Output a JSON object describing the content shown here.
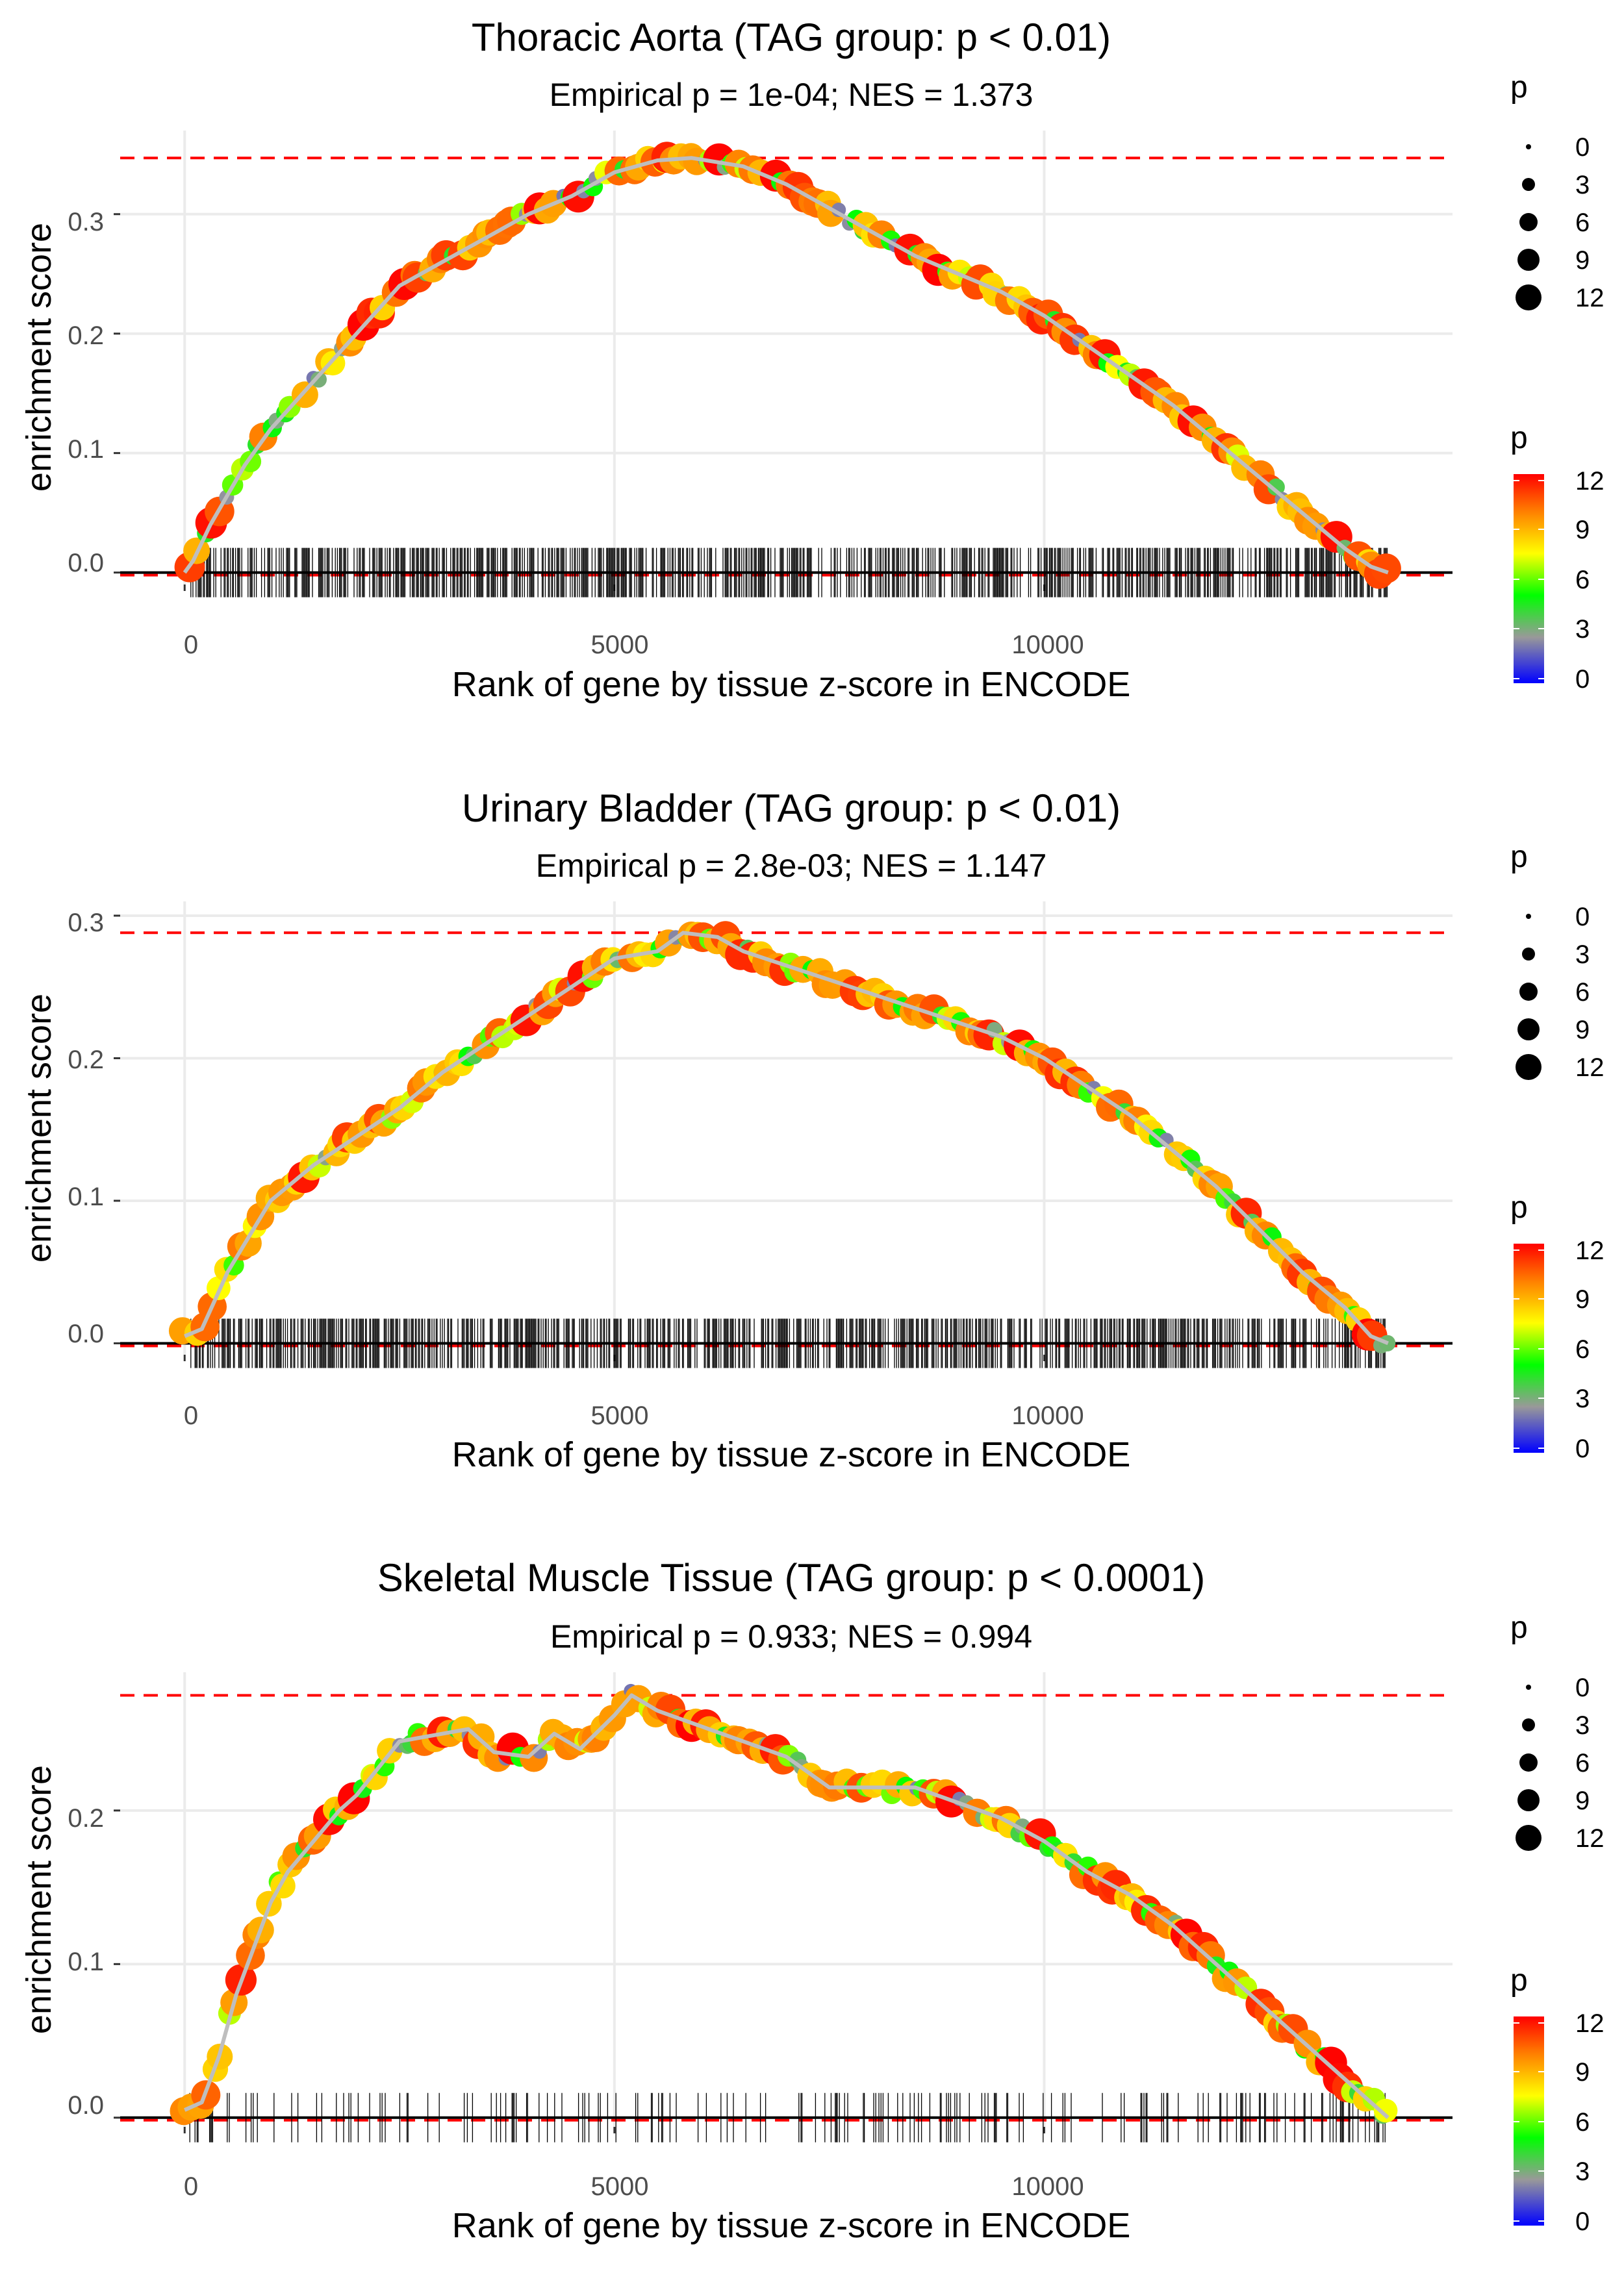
{
  "colors": {
    "gradient": [
      "#0000ff",
      "#999999",
      "#00ff00",
      "#ffff00",
      "#ff8000",
      "#ff0000"
    ],
    "ref_line": "#ff0000",
    "grid": "#ebebeb",
    "curve": "#bebebe",
    "rug": "#000000"
  },
  "chart_data": [
    {
      "type": "scatter",
      "title": "Thoracic Aorta (TAG group: p < 0.01)",
      "subtitle": "Empirical p = 1e-04; NES = 1.373",
      "xlabel": "Rank of gene by tissue z-score in ENCODE",
      "ylabel": "enrichment score",
      "xlim": [
        -750,
        14750
      ],
      "ylim": [
        -0.01,
        0.37
      ],
      "xticks": [
        0,
        5000,
        10000
      ],
      "yticks": [
        0.0,
        0.1,
        0.2,
        0.3
      ],
      "ytick_labels": [
        "0.0",
        "0.1",
        "0.2",
        "0.3"
      ],
      "max_es": 0.347,
      "rug_density": 1.0,
      "curve": {
        "x": [
          0,
          100,
          300,
          700,
          1000,
          1500,
          2000,
          2500,
          3000,
          3500,
          4000,
          4500,
          5000,
          5500,
          5900,
          6500,
          7000,
          7500,
          8000,
          8500,
          9000,
          9500,
          10000,
          10500,
          11000,
          11500,
          12000,
          12500,
          13000,
          13500,
          13800,
          14000
        ],
        "y": [
          0.0,
          0.01,
          0.04,
          0.09,
          0.12,
          0.16,
          0.2,
          0.24,
          0.26,
          0.28,
          0.3,
          0.315,
          0.335,
          0.345,
          0.347,
          0.34,
          0.325,
          0.305,
          0.285,
          0.265,
          0.25,
          0.235,
          0.215,
          0.19,
          0.165,
          0.14,
          0.11,
          0.08,
          0.05,
          0.02,
          0.005,
          0.0
        ]
      },
      "legend_size": {
        "title": "p",
        "values": [
          "0",
          "3",
          "6",
          "9",
          "12"
        ]
      },
      "legend_color": {
        "title": "p",
        "labels": [
          "12",
          "9",
          "6",
          "3",
          "0"
        ]
      }
    },
    {
      "type": "scatter",
      "title": "Urinary Bladder (TAG group: p < 0.01)",
      "subtitle": "Empirical p = 2.8e-03; NES = 1.147",
      "xlabel": "Rank of gene by tissue z-score in ENCODE",
      "ylabel": "enrichment score",
      "xlim": [
        -750,
        14750
      ],
      "ylim": [
        -0.008,
        0.31
      ],
      "xticks": [
        0,
        5000,
        10000
      ],
      "yticks": [
        0.0,
        0.1,
        0.2,
        0.3
      ],
      "ytick_labels": [
        "0.0",
        "0.1",
        "0.2",
        "0.3"
      ],
      "max_es": 0.288,
      "rug_density": 1.0,
      "curve": {
        "x": [
          0,
          200,
          500,
          800,
          1000,
          1500,
          2000,
          2500,
          3000,
          3500,
          4000,
          4500,
          5000,
          5500,
          5800,
          6200,
          6500,
          7000,
          7500,
          8000,
          8500,
          9000,
          9500,
          10000,
          10500,
          11000,
          11500,
          12000,
          12500,
          13000,
          13500,
          13800,
          14000
        ],
        "y": [
          0.005,
          0.01,
          0.05,
          0.08,
          0.1,
          0.125,
          0.145,
          0.165,
          0.19,
          0.21,
          0.23,
          0.25,
          0.27,
          0.275,
          0.288,
          0.285,
          0.275,
          0.265,
          0.255,
          0.245,
          0.235,
          0.225,
          0.215,
          0.2,
          0.18,
          0.16,
          0.135,
          0.11,
          0.08,
          0.05,
          0.025,
          0.005,
          0.0
        ]
      },
      "legend_size": {
        "title": "p",
        "values": [
          "0",
          "3",
          "6",
          "9",
          "12"
        ]
      },
      "legend_color": {
        "title": "p",
        "labels": [
          "12",
          "9",
          "6",
          "3",
          "0"
        ]
      }
    },
    {
      "type": "scatter",
      "title": "Skeletal Muscle Tissue (TAG group: p < 0.0001)",
      "subtitle": "Empirical p = 0.933; NES = 0.994",
      "xlabel": "Rank of gene by tissue z-score in ENCODE",
      "ylabel": "enrichment score",
      "xlim": [
        -750,
        14750
      ],
      "ylim": [
        -0.006,
        0.29
      ],
      "xticks": [
        0,
        5000,
        10000
      ],
      "yticks": [
        0.0,
        0.1,
        0.2
      ],
      "ytick_labels": [
        "0.0",
        "0.1",
        "0.2"
      ],
      "max_es": 0.275,
      "rug_density": 0.32,
      "curve": {
        "x": [
          0,
          200,
          400,
          600,
          800,
          1000,
          1200,
          1500,
          1800,
          2000,
          2500,
          3000,
          3300,
          3600,
          4000,
          4300,
          4600,
          5000,
          5200,
          5500,
          6000,
          6500,
          7000,
          7500,
          8000,
          8500,
          9000,
          9500,
          10000,
          10500,
          11000,
          11500,
          12000,
          12500,
          13000,
          13500,
          13800,
          14000
        ],
        "y": [
          0.005,
          0.01,
          0.04,
          0.08,
          0.11,
          0.14,
          0.16,
          0.18,
          0.2,
          0.21,
          0.245,
          0.25,
          0.253,
          0.238,
          0.235,
          0.25,
          0.24,
          0.262,
          0.275,
          0.265,
          0.255,
          0.245,
          0.235,
          0.215,
          0.215,
          0.215,
          0.205,
          0.195,
          0.18,
          0.16,
          0.145,
          0.125,
          0.1,
          0.075,
          0.05,
          0.025,
          0.01,
          0.0
        ]
      },
      "legend_size": {
        "title": "p",
        "values": [
          "0",
          "3",
          "6",
          "9",
          "12"
        ]
      },
      "legend_color": {
        "title": "p",
        "labels": [
          "12",
          "9",
          "6",
          "3",
          "0"
        ]
      }
    }
  ]
}
